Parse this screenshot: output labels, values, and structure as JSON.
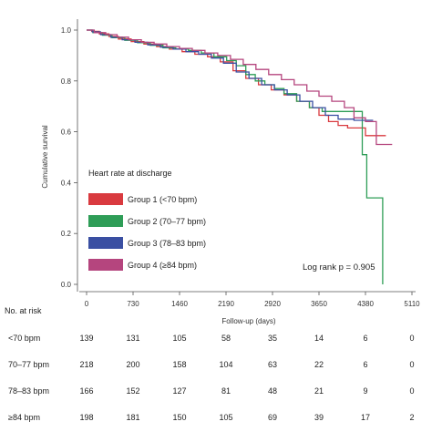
{
  "chart_data": {
    "type": "line",
    "title": "",
    "xlabel": "Follow-up (days)",
    "ylabel": "Cumulative survival",
    "xlim": [
      0,
      5110
    ],
    "ylim": [
      0.0,
      1.0
    ],
    "x_ticks": [
      "0",
      "730",
      "1460",
      "2190",
      "2920",
      "3650",
      "4380",
      "5110"
    ],
    "y_ticks": [
      "0.0",
      "0.2",
      "0.4",
      "0.6",
      "0.8",
      "1.0"
    ],
    "grid": false,
    "legend": {
      "title": "Heart rate at discharge",
      "placement": "bottom-left"
    },
    "annotation": "Log rank p = 0.905",
    "series": [
      {
        "name": "Group 1 (<70 bpm)",
        "color": "#d93a3f",
        "points": [
          [
            0,
            1.0
          ],
          [
            80,
            0.995
          ],
          [
            200,
            0.985
          ],
          [
            350,
            0.975
          ],
          [
            500,
            0.965
          ],
          [
            700,
            0.955
          ],
          [
            900,
            0.945
          ],
          [
            1100,
            0.935
          ],
          [
            1300,
            0.925
          ],
          [
            1500,
            0.915
          ],
          [
            1700,
            0.905
          ],
          [
            1900,
            0.895
          ],
          [
            2100,
            0.875
          ],
          [
            2300,
            0.84
          ],
          [
            2500,
            0.81
          ],
          [
            2700,
            0.785
          ],
          [
            2900,
            0.765
          ],
          [
            3100,
            0.745
          ],
          [
            3300,
            0.72
          ],
          [
            3500,
            0.695
          ],
          [
            3650,
            0.665
          ],
          [
            3800,
            0.64
          ],
          [
            3950,
            0.625
          ],
          [
            4100,
            0.615
          ],
          [
            4380,
            0.585
          ],
          [
            4700,
            0.585
          ]
        ]
      },
      {
        "name": "Group 2 (70–77 bpm)",
        "color": "#2e9d57",
        "points": [
          [
            0,
            1.0
          ],
          [
            100,
            0.99
          ],
          [
            250,
            0.98
          ],
          [
            400,
            0.97
          ],
          [
            600,
            0.96
          ],
          [
            800,
            0.95
          ],
          [
            1000,
            0.94
          ],
          [
            1200,
            0.93
          ],
          [
            1400,
            0.925
          ],
          [
            1600,
            0.92
          ],
          [
            1800,
            0.91
          ],
          [
            2000,
            0.895
          ],
          [
            2200,
            0.88
          ],
          [
            2350,
            0.86
          ],
          [
            2500,
            0.825
          ],
          [
            2650,
            0.8
          ],
          [
            2800,
            0.785
          ],
          [
            2950,
            0.77
          ],
          [
            3100,
            0.75
          ],
          [
            3300,
            0.72
          ],
          [
            3500,
            0.695
          ],
          [
            3700,
            0.68
          ],
          [
            4000,
            0.68
          ],
          [
            4260,
            0.68
          ],
          [
            4330,
            0.51
          ],
          [
            4400,
            0.34
          ],
          [
            4580,
            0.34
          ],
          [
            4650,
            0.0
          ]
        ]
      },
      {
        "name": "Group 3 (78–83 bpm)",
        "color": "#3a4fa2",
        "points": [
          [
            0,
            1.0
          ],
          [
            90,
            0.993
          ],
          [
            220,
            0.982
          ],
          [
            380,
            0.972
          ],
          [
            560,
            0.962
          ],
          [
            760,
            0.952
          ],
          [
            960,
            0.942
          ],
          [
            1160,
            0.933
          ],
          [
            1360,
            0.925
          ],
          [
            1560,
            0.915
          ],
          [
            1760,
            0.905
          ],
          [
            1960,
            0.89
          ],
          [
            2150,
            0.87
          ],
          [
            2350,
            0.835
          ],
          [
            2550,
            0.81
          ],
          [
            2750,
            0.785
          ],
          [
            2950,
            0.765
          ],
          [
            3150,
            0.745
          ],
          [
            3350,
            0.72
          ],
          [
            3550,
            0.695
          ],
          [
            3750,
            0.665
          ],
          [
            3950,
            0.65
          ],
          [
            4200,
            0.645
          ],
          [
            4500,
            0.645
          ]
        ]
      },
      {
        "name": "Group 4 (≥84 bpm)",
        "color": "#b5457e",
        "points": [
          [
            0,
            1.0
          ],
          [
            120,
            0.99
          ],
          [
            300,
            0.982
          ],
          [
            480,
            0.972
          ],
          [
            660,
            0.962
          ],
          [
            860,
            0.952
          ],
          [
            1060,
            0.945
          ],
          [
            1260,
            0.935
          ],
          [
            1460,
            0.928
          ],
          [
            1660,
            0.92
          ],
          [
            1860,
            0.91
          ],
          [
            2060,
            0.9
          ],
          [
            2260,
            0.885
          ],
          [
            2460,
            0.865
          ],
          [
            2660,
            0.845
          ],
          [
            2860,
            0.825
          ],
          [
            3060,
            0.805
          ],
          [
            3260,
            0.785
          ],
          [
            3460,
            0.76
          ],
          [
            3650,
            0.74
          ],
          [
            3850,
            0.72
          ],
          [
            4050,
            0.695
          ],
          [
            4200,
            0.655
          ],
          [
            4380,
            0.64
          ],
          [
            4550,
            0.55
          ],
          [
            4800,
            0.55
          ]
        ]
      }
    ]
  },
  "risk_table": {
    "title": "No. at risk",
    "rows": [
      {
        "label": "<70 bpm",
        "values": [
          "139",
          "131",
          "105",
          "58",
          "35",
          "14",
          "6",
          "0"
        ]
      },
      {
        "label": "70–77 bpm",
        "values": [
          "218",
          "200",
          "158",
          "104",
          "63",
          "22",
          "6",
          "0"
        ]
      },
      {
        "label": "78–83 bpm",
        "values": [
          "166",
          "152",
          "127",
          "81",
          "48",
          "21",
          "9",
          "0"
        ]
      },
      {
        "label": "≥84 bpm",
        "values": [
          "198",
          "181",
          "150",
          "105",
          "69",
          "39",
          "17",
          "2"
        ]
      }
    ]
  }
}
